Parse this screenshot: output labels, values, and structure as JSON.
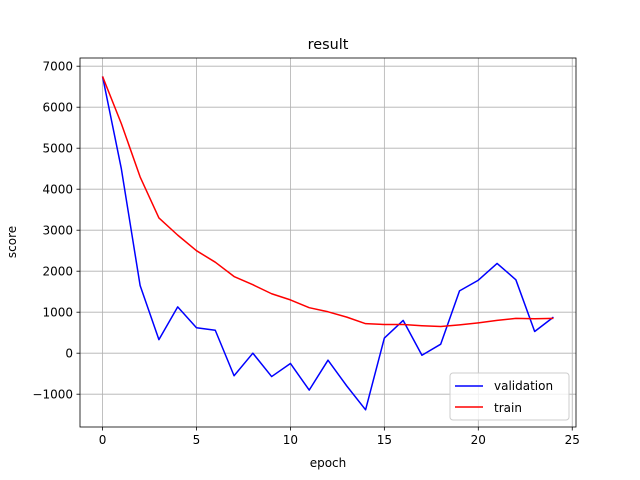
{
  "chart_data": {
    "type": "line",
    "title": "result",
    "xlabel": "epoch",
    "ylabel": "score",
    "xlim": [
      -1.2,
      25.2
    ],
    "ylim": [
      -1800,
      7200
    ],
    "xticks": [
      0,
      5,
      10,
      15,
      20,
      25
    ],
    "yticks": [
      -1000,
      0,
      1000,
      2000,
      3000,
      4000,
      5000,
      6000,
      7000
    ],
    "ytick_labels": [
      "−1000",
      "0",
      "1000",
      "2000",
      "3000",
      "4000",
      "5000",
      "6000",
      "7000"
    ],
    "grid": true,
    "legend_position": "lower right",
    "x": [
      0,
      1,
      2,
      3,
      4,
      5,
      6,
      7,
      8,
      9,
      10,
      11,
      12,
      13,
      14,
      15,
      16,
      17,
      18,
      19,
      20,
      21,
      22,
      23,
      24
    ],
    "series": [
      {
        "name": "validation",
        "color": "#0000ff",
        "values": [
          6750,
          4500,
          1650,
          330,
          1130,
          620,
          560,
          -550,
          0,
          -570,
          -250,
          -900,
          -170,
          -800,
          -1380,
          370,
          800,
          -50,
          220,
          1520,
          1780,
          2190,
          1790,
          530,
          880
        ]
      },
      {
        "name": "train",
        "color": "#ff0000",
        "values": [
          6750,
          5600,
          4300,
          3300,
          2880,
          2500,
          2220,
          1870,
          1670,
          1450,
          1300,
          1110,
          1010,
          880,
          720,
          700,
          700,
          670,
          650,
          690,
          740,
          800,
          850,
          840,
          850
        ]
      }
    ]
  }
}
